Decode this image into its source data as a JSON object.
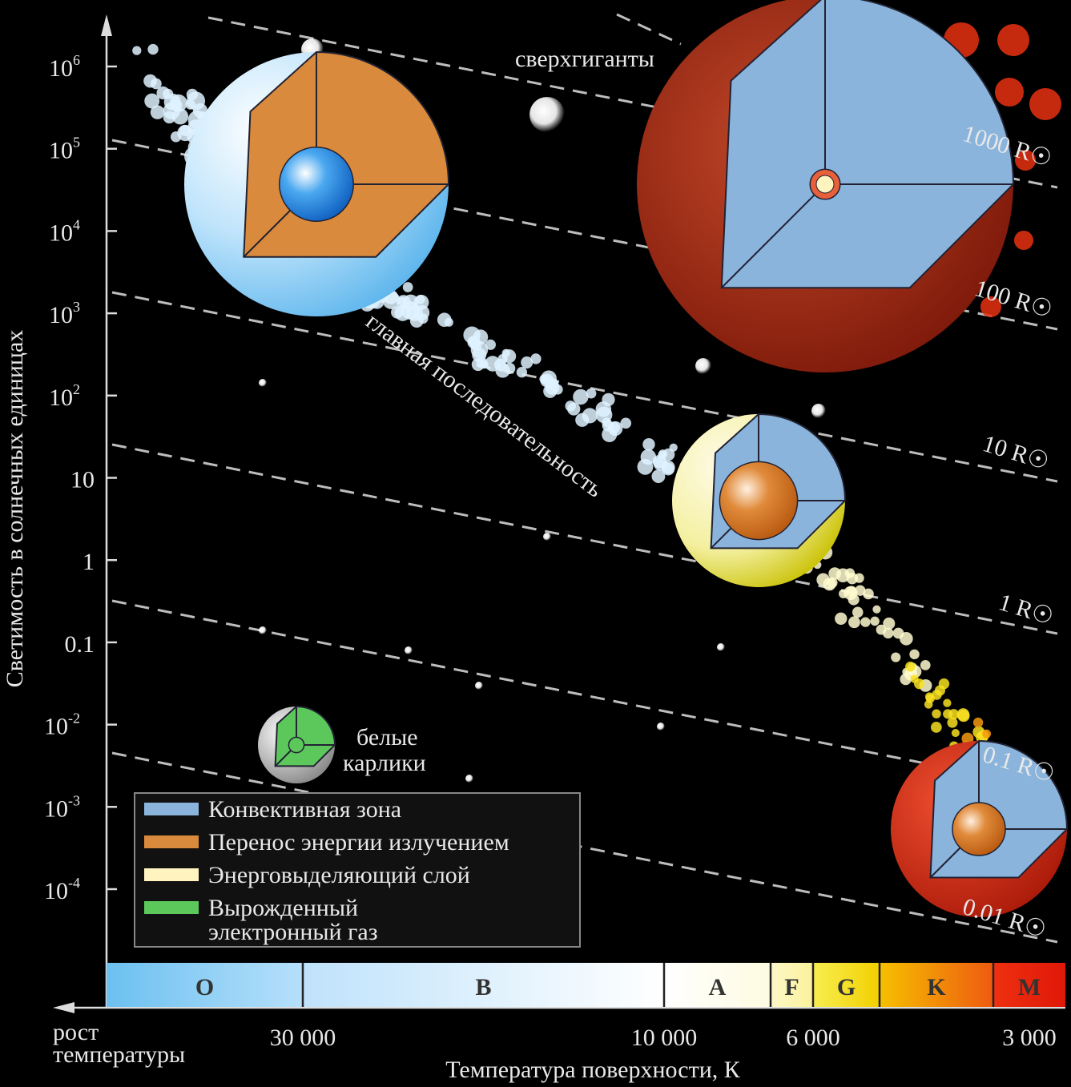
{
  "y_axis": {
    "title": "Светимость в солнечных единицах",
    "ticks": [
      {
        "text": "10",
        "exp": "6"
      },
      {
        "text": "10",
        "exp": "5"
      },
      {
        "text": "10",
        "exp": "4"
      },
      {
        "text": "10",
        "exp": "3"
      },
      {
        "text": "10",
        "exp": "2"
      },
      {
        "text": "10"
      },
      {
        "text": "1"
      },
      {
        "text": "0.1"
      },
      {
        "text": "10",
        "exp": "-2"
      },
      {
        "text": "10",
        "exp": "-3"
      },
      {
        "text": "10",
        "exp": "-4"
      }
    ]
  },
  "x_axis": {
    "title": "Температура поверхности, К",
    "direction_label": [
      "рост",
      "температуры"
    ],
    "ticks": [
      "30 000",
      "10 000",
      "6 000",
      "3 000"
    ],
    "spectral_classes": [
      "O",
      "B",
      "A",
      "F",
      "G",
      "K",
      "M"
    ]
  },
  "radius_lines": [
    "1000 R☉",
    "100 R☉",
    "10 R☉",
    "1 R☉",
    "0.1 R☉",
    "0.01 R☉"
  ],
  "annotations": {
    "supergiants": "сверхгиганты",
    "main_sequence": "главная последовательность",
    "white_dwarfs": [
      "белые",
      "карлики"
    ]
  },
  "legend": [
    {
      "lines": [
        "Конвективная зона"
      ],
      "color": "#8ab4dc"
    },
    {
      "lines": [
        "Перенос энергии излучением"
      ],
      "color": "#d98a3c"
    },
    {
      "lines": [
        "Энерговыделяющий слой"
      ],
      "color": "#fff3c0"
    },
    {
      "lines": [
        "Вырожденный",
        "электронный газ"
      ],
      "color": "#5cc85c"
    }
  ]
}
